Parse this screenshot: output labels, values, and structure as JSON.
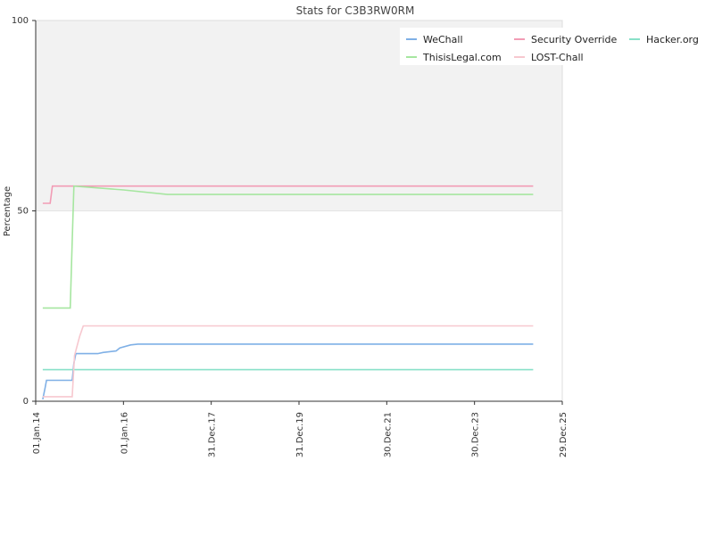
{
  "chart_data": {
    "type": "line",
    "title": "Stats for C3B3RW0RM",
    "xlabel": "",
    "ylabel": "Percentage",
    "ylim": [
      0,
      100
    ],
    "yticks": [
      0,
      50,
      100
    ],
    "xlim": [
      "2014-01-01",
      "2025-12-29"
    ],
    "xticks": [
      {
        "date": "2014-01-01",
        "label": "01.Jan.14"
      },
      {
        "date": "2016-01-01",
        "label": "01.Jan.16"
      },
      {
        "date": "2017-12-31",
        "label": "31.Dec.17"
      },
      {
        "date": "2019-12-31",
        "label": "31.Dec.19"
      },
      {
        "date": "2021-12-30",
        "label": "30.Dec.21"
      },
      {
        "date": "2023-12-30",
        "label": "30.Dec.23"
      },
      {
        "date": "2025-12-29",
        "label": "29.Dec.25"
      }
    ],
    "shaded_band": [
      50,
      100
    ],
    "grid": false,
    "legend_position": "top-right",
    "series": [
      {
        "name": "WeChall",
        "color": "#7fb0e6",
        "points": [
          [
            "2014-03-01",
            0.5
          ],
          [
            "2014-03-10",
            2
          ],
          [
            "2014-03-20",
            3.5
          ],
          [
            "2014-04-01",
            5.5
          ],
          [
            "2014-11-01",
            5.5
          ],
          [
            "2014-11-15",
            10
          ],
          [
            "2014-12-01",
            12.5
          ],
          [
            "2015-06-01",
            12.5
          ],
          [
            "2015-07-15",
            12.8
          ],
          [
            "2015-11-01",
            13.2
          ],
          [
            "2015-12-01",
            14
          ],
          [
            "2016-03-01",
            14.8
          ],
          [
            "2016-05-01",
            15
          ],
          [
            "2025-05-01",
            15
          ]
        ]
      },
      {
        "name": "Security Override",
        "color": "#f29cb5",
        "points": [
          [
            "2014-03-01",
            52
          ],
          [
            "2014-05-01",
            52
          ],
          [
            "2014-05-20",
            56.5
          ],
          [
            "2025-05-01",
            56.5
          ]
        ]
      },
      {
        "name": "Hacker.org",
        "color": "#88e0c8",
        "points": [
          [
            "2014-03-01",
            8.3
          ],
          [
            "2025-05-01",
            8.3
          ]
        ]
      },
      {
        "name": "ThisisLegal.com",
        "color": "#a6e6a0",
        "points": [
          [
            "2014-03-01",
            24.5
          ],
          [
            "2014-10-15",
            24.5
          ],
          [
            "2014-11-01",
            42
          ],
          [
            "2014-11-15",
            56.5
          ],
          [
            "2016-01-01",
            55.5
          ],
          [
            "2017-01-01",
            54.3
          ],
          [
            "2025-05-01",
            54.3
          ]
        ]
      },
      {
        "name": "LOST-Chall",
        "color": "#f7c8cf",
        "points": [
          [
            "2014-03-01",
            1.2
          ],
          [
            "2014-11-01",
            1.2
          ],
          [
            "2014-11-20",
            12
          ],
          [
            "2015-01-01",
            17
          ],
          [
            "2015-02-01",
            19.8
          ],
          [
            "2025-05-01",
            19.8
          ]
        ]
      }
    ]
  }
}
